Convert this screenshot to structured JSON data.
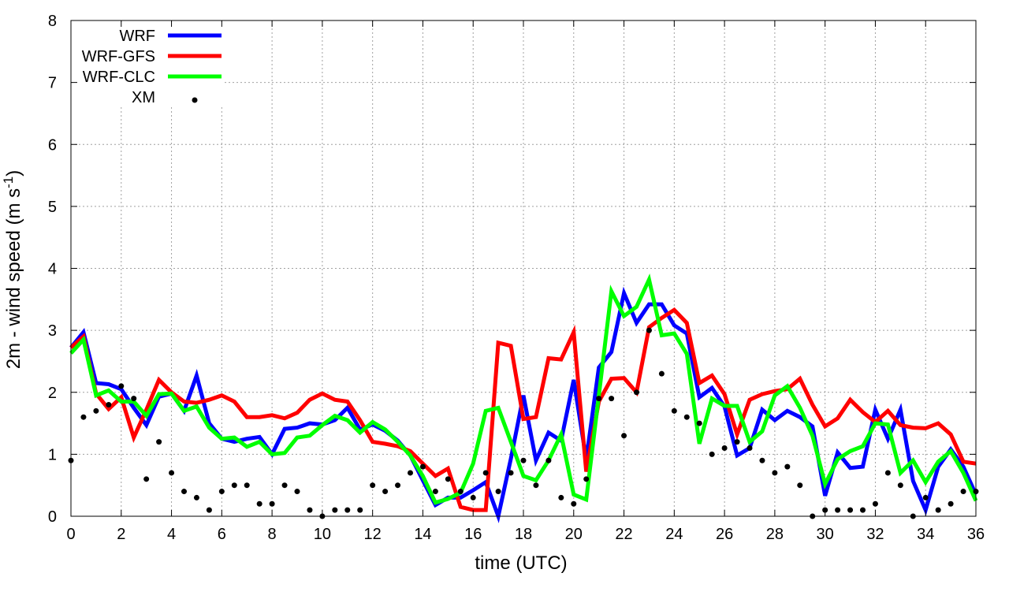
{
  "chart_data": {
    "type": "line",
    "xlabel": "time (UTC)",
    "ylabel_main": "2m - wind speed  (m s",
    "ylabel_sup": "-1",
    "ylabel_close": ")",
    "xlim": [
      0,
      36
    ],
    "ylim": [
      0,
      8
    ],
    "xticks": [
      0,
      2,
      4,
      6,
      8,
      10,
      12,
      14,
      16,
      18,
      20,
      22,
      24,
      26,
      28,
      30,
      32,
      34,
      36
    ],
    "yticks": [
      0,
      1,
      2,
      3,
      4,
      5,
      6,
      7,
      8
    ],
    "grid": true,
    "legend_position": "top-left",
    "x": [
      0,
      0.5,
      1,
      1.5,
      2,
      2.5,
      3,
      3.5,
      4,
      4.5,
      5,
      5.5,
      6,
      6.5,
      7,
      7.5,
      8,
      8.5,
      9,
      9.5,
      10,
      10.5,
      11,
      11.5,
      12,
      12.5,
      13,
      13.5,
      14,
      14.5,
      15,
      15.5,
      16,
      16.5,
      17,
      17.5,
      18,
      18.5,
      19,
      19.5,
      20,
      20.5,
      21,
      21.5,
      22,
      22.5,
      23,
      23.5,
      24,
      24.5,
      25,
      25.5,
      26,
      26.5,
      27,
      27.5,
      28,
      28.5,
      29,
      29.5,
      30,
      30.5,
      31,
      31.5,
      32,
      32.5,
      33,
      33.5,
      34,
      34.5,
      35,
      35.5,
      36
    ],
    "series": [
      {
        "name": "WRF",
        "color": "#0000ff",
        "style": "line",
        "values": [
          2.72,
          2.97,
          2.15,
          2.13,
          2.05,
          1.75,
          1.47,
          1.93,
          1.98,
          1.7,
          2.27,
          1.5,
          1.25,
          1.2,
          1.25,
          1.28,
          1.0,
          1.41,
          1.43,
          1.5,
          1.48,
          1.55,
          1.75,
          1.4,
          1.48,
          1.38,
          1.22,
          0.98,
          0.58,
          0.18,
          0.3,
          0.3,
          0.42,
          0.55,
          0.0,
          0.93,
          1.95,
          0.9,
          1.35,
          1.22,
          2.2,
          0.92,
          2.4,
          2.65,
          3.6,
          3.12,
          3.42,
          3.42,
          3.08,
          2.95,
          1.92,
          2.07,
          1.77,
          0.98,
          1.1,
          1.72,
          1.55,
          1.7,
          1.6,
          1.45,
          0.33,
          1.03,
          0.78,
          0.8,
          1.72,
          1.25,
          1.72,
          0.57,
          0.1,
          0.8,
          1.08,
          0.8,
          0.35
        ]
      },
      {
        "name": "WRF-GFS",
        "color": "#ff0000",
        "style": "line",
        "values": [
          2.72,
          2.9,
          1.98,
          1.73,
          1.92,
          1.27,
          1.72,
          2.2,
          2.0,
          1.85,
          1.83,
          1.88,
          1.95,
          1.85,
          1.6,
          1.6,
          1.63,
          1.58,
          1.67,
          1.88,
          1.98,
          1.88,
          1.85,
          1.55,
          1.2,
          1.17,
          1.13,
          1.05,
          0.85,
          0.65,
          0.77,
          0.15,
          0.1,
          0.1,
          2.8,
          2.75,
          1.57,
          1.6,
          2.55,
          2.53,
          2.97,
          0.72,
          1.85,
          2.22,
          2.23,
          2.0,
          3.05,
          3.2,
          3.33,
          3.12,
          2.15,
          2.27,
          1.97,
          1.32,
          1.88,
          1.97,
          2.02,
          2.05,
          2.22,
          1.8,
          1.45,
          1.58,
          1.88,
          1.68,
          1.52,
          1.7,
          1.47,
          1.43,
          1.42,
          1.5,
          1.32,
          0.88,
          0.85
        ]
      },
      {
        "name": "WRF-CLC",
        "color": "#00ff00",
        "style": "line",
        "values": [
          2.63,
          2.85,
          1.95,
          2.03,
          1.85,
          1.85,
          1.62,
          1.97,
          1.98,
          1.7,
          1.77,
          1.43,
          1.25,
          1.27,
          1.12,
          1.2,
          1.0,
          1.02,
          1.27,
          1.3,
          1.47,
          1.62,
          1.55,
          1.35,
          1.52,
          1.4,
          1.2,
          0.98,
          0.65,
          0.22,
          0.28,
          0.38,
          0.85,
          1.7,
          1.75,
          1.2,
          0.65,
          0.58,
          0.9,
          1.32,
          0.35,
          0.27,
          1.95,
          3.63,
          3.23,
          3.38,
          3.82,
          2.92,
          2.95,
          2.62,
          1.17,
          1.9,
          1.78,
          1.78,
          1.2,
          1.37,
          1.95,
          2.1,
          1.75,
          1.3,
          0.52,
          0.92,
          1.05,
          1.13,
          1.5,
          1.48,
          0.7,
          0.9,
          0.55,
          0.88,
          1.05,
          0.7,
          0.25
        ]
      },
      {
        "name": "XM",
        "color": "#000000",
        "style": "points",
        "values": [
          0.9,
          1.6,
          1.7,
          1.8,
          2.1,
          1.9,
          0.6,
          1.2,
          0.7,
          0.4,
          0.3,
          0.1,
          0.4,
          0.5,
          0.5,
          0.2,
          0.2,
          0.5,
          0.4,
          0.1,
          0.0,
          0.1,
          0.1,
          0.1,
          0.5,
          0.4,
          0.5,
          0.7,
          0.8,
          0.4,
          0.6,
          0.4,
          0.3,
          0.7,
          0.4,
          0.7,
          0.9,
          0.5,
          0.9,
          0.3,
          0.2,
          0.6,
          1.9,
          1.9,
          1.3,
          2.0,
          3.0,
          2.3,
          1.7,
          1.6,
          1.5,
          1.0,
          1.1,
          1.2,
          1.1,
          0.9,
          0.7,
          0.8,
          0.5,
          0.0,
          0.1,
          0.1,
          0.1,
          0.1,
          0.2,
          0.7,
          0.5,
          0.0,
          0.3,
          0.1,
          0.2,
          0.4,
          0.4
        ]
      }
    ]
  }
}
